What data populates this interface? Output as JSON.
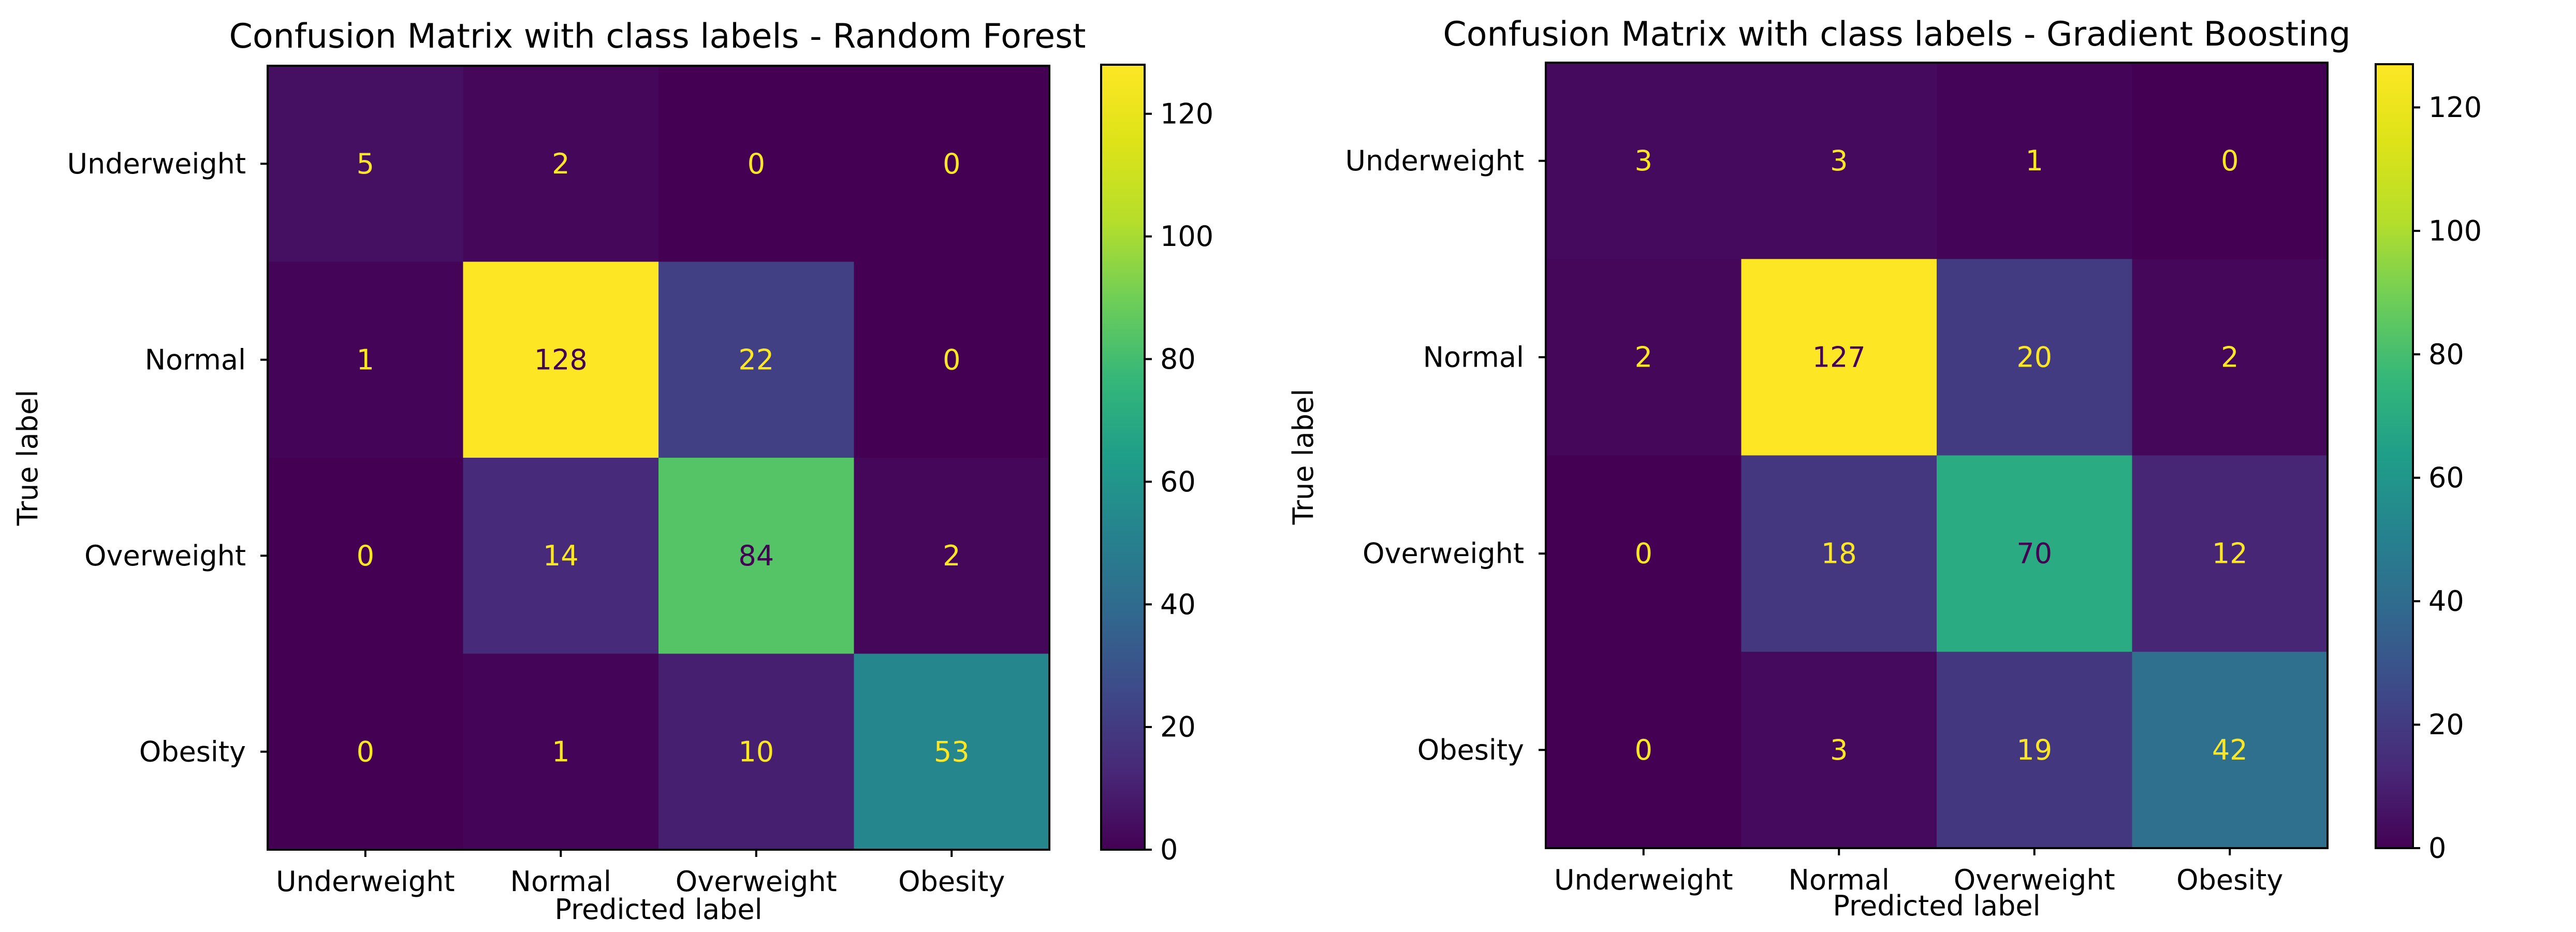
{
  "chart_data": [
    {
      "type": "heatmap",
      "title": "Confusion Matrix with class labels - Random Forest",
      "xlabel": "Predicted label",
      "ylabel": "True label",
      "x_categories": [
        "Underweight",
        "Normal",
        "Overweight",
        "Obesity"
      ],
      "y_categories": [
        "Underweight",
        "Normal",
        "Overweight",
        "Obesity"
      ],
      "values": [
        [
          5,
          2,
          0,
          0
        ],
        [
          1,
          128,
          22,
          0
        ],
        [
          0,
          14,
          84,
          2
        ],
        [
          0,
          1,
          10,
          53
        ]
      ],
      "colormap": "viridis",
      "vmin": 0,
      "vmax": 128,
      "colorbar_ticks": [
        "0",
        "20",
        "40",
        "60",
        "80",
        "100",
        "120"
      ],
      "colorbar_tick_values": [
        0,
        20,
        40,
        60,
        80,
        100,
        120
      ]
    },
    {
      "type": "heatmap",
      "title": "Confusion Matrix with class labels - Gradient Boosting",
      "xlabel": "Predicted label",
      "ylabel": "True label",
      "x_categories": [
        "Underweight",
        "Normal",
        "Overweight",
        "Obesity"
      ],
      "y_categories": [
        "Underweight",
        "Normal",
        "Overweight",
        "Obesity"
      ],
      "values": [
        [
          3,
          3,
          1,
          0
        ],
        [
          2,
          127,
          20,
          2
        ],
        [
          0,
          18,
          70,
          12
        ],
        [
          0,
          3,
          19,
          42
        ]
      ],
      "colormap": "viridis",
      "vmin": 0,
      "vmax": 127,
      "colorbar_ticks": [
        "0",
        "20",
        "40",
        "60",
        "80",
        "100",
        "120"
      ],
      "colorbar_tick_values": [
        0,
        20,
        40,
        60,
        80,
        100,
        120
      ]
    }
  ]
}
